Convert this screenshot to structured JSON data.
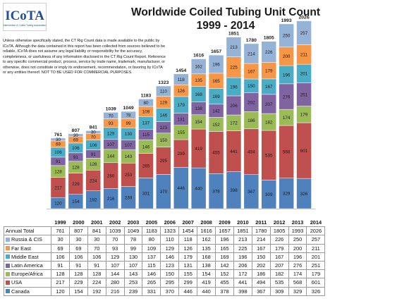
{
  "title_line1": "Worldwide Coiled Tubing Unit Count",
  "title_line2": "1999 - 2014",
  "logo_text": "ICoTA",
  "logo_subtext": "Intervention & Coiled Tubing Association",
  "disclaimer": "Unless otherwise specifically stated, the CT Rig Count data is made available to the public by ICoTA.  Although the data contained in this report has been collected from sources believed to be reliable, ICoTA does not assume any legal liability or responsibility for the accuracy, completeness, or usefulness of any information disclosed in the CT Rig Count Report. Reference to any specific commercial product, process, service by trade name, trademark, manufacturer, or otherwise, does not constitute or imply its endorsement, recommendation, or favoring by ICoTA or any entities thereof.  NOT TO BE USED FOR COMMERCIAL PURPOSES.",
  "chart_data": {
    "type": "bar",
    "stacked": true,
    "title": "Worldwide Coiled Tubing Unit Count",
    "subtitle": "1999 - 2014",
    "categories": [
      "1999",
      "2000",
      "2001",
      "2002",
      "2003",
      "2005",
      "2006",
      "2007",
      "2008",
      "2009",
      "2010",
      "2011",
      "2012",
      "2013",
      "2014"
    ],
    "totals_label": "Annual Total",
    "totals": [
      761,
      807,
      841,
      1039,
      1049,
      1183,
      1323,
      1454,
      1616,
      1657,
      1851,
      1780,
      1805,
      1993,
      2026
    ],
    "series": [
      {
        "name": "Canada",
        "color": "#4f81bd",
        "values": [
          120,
          154,
          192,
          216,
          239,
          331,
          370,
          446,
          440,
          378,
          398,
          367,
          309,
          329,
          326
        ]
      },
      {
        "name": "USA",
        "color": "#c0504d",
        "values": [
          217,
          229,
          224,
          280,
          253,
          265,
          295,
          299,
          419,
          455,
          441,
          494,
          535,
          568,
          601
        ]
      },
      {
        "name": "Europe/Africa",
        "color": "#9bbb59",
        "values": [
          128,
          128,
          128,
          144,
          143,
          146,
          150,
          155,
          154,
          152,
          172,
          186,
          182,
          174,
          179
        ]
      },
      {
        "name": "Latin America",
        "color": "#8064a2",
        "values": [
          91,
          91,
          91,
          107,
          107,
          115,
          123,
          131,
          138,
          142,
          206,
          202,
          207,
          276,
          251
        ]
      },
      {
        "name": "Middle East",
        "color": "#4bacc6",
        "values": [
          106,
          106,
          106,
          129,
          130,
          137,
          146,
          179,
          168,
          169,
          196,
          150,
          167,
          196,
          201
        ]
      },
      {
        "name": "Far East",
        "color": "#f79646",
        "values": [
          69,
          69,
          70,
          93,
          99,
          109,
          129,
          126,
          135,
          165,
          225,
          167,
          179,
          200,
          211
        ]
      },
      {
        "name": "Russia & CIS",
        "color": "#95b3d7",
        "values": [
          30,
          30,
          30,
          70,
          78,
          80,
          110,
          118,
          162,
          196,
          213,
          214,
          226,
          250,
          257
        ]
      }
    ],
    "table_order": [
      "Russia & CIS",
      "Far East",
      "Middle East",
      "Latin America",
      "Europe/Africa",
      "USA",
      "Canada"
    ]
  }
}
